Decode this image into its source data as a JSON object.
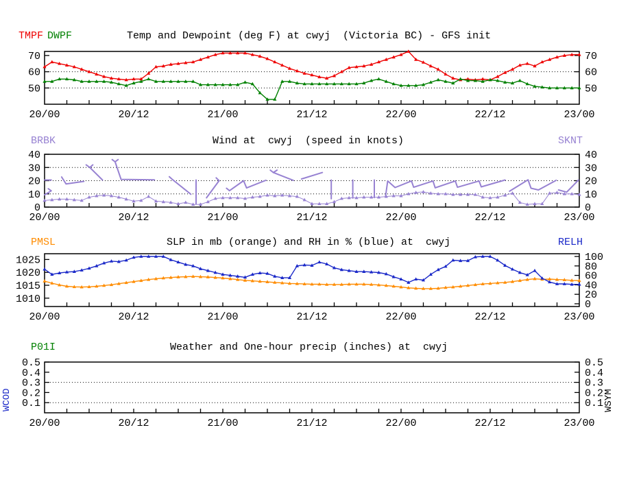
{
  "colors": {
    "temp": "#ee0000",
    "dewpoint": "#008000",
    "wind": "#9782d2",
    "pressure": "#ff8c00",
    "humidity": "#1a28c8",
    "axis": "#000000",
    "background": "#ffffff"
  },
  "x_axis": {
    "major_tick_labels": [
      "20/00",
      "20/12",
      "21/00",
      "21/12",
      "22/00",
      "22/12",
      "23/00"
    ],
    "label_interval_hours": 12,
    "minor_tick_hours": 3,
    "total_hours": 72,
    "data_interval_hours": 1
  },
  "chart_data": [
    {
      "type": "line",
      "title": "Temp and Dewpoint (deg F) at cwyj  (Victoria BC) - GFS init",
      "y_ticks": [
        70,
        60,
        50
      ],
      "dotted_gridlines": [
        60,
        50
      ],
      "ylim": [
        40,
        72.5
      ],
      "x_hours": "hourly 0-72 from 20/00 to 23/00",
      "series": [
        {
          "name": "TMPF",
          "color_key": "temp",
          "values": [
            63,
            66,
            65,
            64,
            63,
            61.5,
            60,
            58.5,
            57,
            56,
            55.5,
            55,
            55.5,
            55.5,
            59,
            63,
            63.5,
            64.5,
            65,
            65.5,
            66,
            67.5,
            69,
            70.5,
            71.5,
            71.5,
            71.5,
            71.5,
            70.5,
            69.5,
            68,
            66,
            64,
            62,
            60.5,
            59,
            58,
            56.8,
            56,
            57.5,
            60,
            62.5,
            63,
            63.5,
            64.5,
            66,
            67.5,
            69,
            70.5,
            72.5,
            67.5,
            65.8,
            63.5,
            61.5,
            58.5,
            56,
            55,
            55.5,
            55,
            55.5,
            55,
            57,
            59.5,
            61.5,
            64,
            65,
            63.5,
            66,
            67.5,
            69,
            70,
            70.5,
            70.5
          ]
        },
        {
          "name": "DWPF",
          "color_key": "dewpoint",
          "values": [
            54,
            54,
            55.5,
            55.5,
            55,
            54,
            54,
            54,
            54,
            53.5,
            52.5,
            51.5,
            53,
            54,
            55.5,
            54,
            54,
            54,
            54,
            54,
            54,
            52,
            52,
            52,
            52,
            52,
            52,
            53.5,
            52.5,
            47,
            43,
            43,
            54,
            54,
            53,
            52.5,
            52.5,
            52.5,
            52.5,
            52.5,
            52.5,
            52.5,
            52.5,
            53,
            54.5,
            55.5,
            54,
            52.5,
            51.5,
            51.5,
            51.5,
            52,
            53.5,
            55,
            54,
            53,
            55.5,
            54.5,
            54.5,
            54,
            55,
            54.5,
            53.5,
            53,
            54.5,
            52.5,
            51,
            50.5,
            50,
            50,
            50,
            50,
            50
          ]
        }
      ]
    },
    {
      "type": "line",
      "title": "Wind at  cwyj  (speed in knots)",
      "legend_left": "BRBK",
      "legend_right": "SKNT",
      "y_ticks": [
        40,
        30,
        20,
        10,
        0
      ],
      "dotted_gridlines": [
        30,
        20,
        10
      ],
      "ylim": [
        0,
        40
      ],
      "series": [
        {
          "name": "SKNT",
          "color_key": "wind",
          "values": [
            5,
            5.5,
            6,
            6,
            5.5,
            5,
            7.5,
            8.5,
            9,
            8.5,
            7.5,
            6,
            4.5,
            5,
            8,
            4.5,
            4,
            3.5,
            2.5,
            3.5,
            2,
            2,
            4,
            6.5,
            7,
            7,
            7,
            6.5,
            7.5,
            8,
            9,
            8.5,
            9,
            8.5,
            8,
            5.5,
            2.5,
            2.5,
            2.5,
            4,
            6.5,
            7,
            7,
            7.5,
            7.5,
            7.5,
            8,
            8.5,
            8.5,
            10,
            11,
            11.5,
            10.5,
            10,
            10,
            9.5,
            9.5,
            9.5,
            9.5,
            7.5,
            7,
            7.5,
            9,
            10.5,
            3.5,
            2,
            2.5,
            2.5,
            10.5,
            11,
            10,
            10,
            9.5
          ]
        }
      ],
      "barbs_units": "polyline points [hour, knots]",
      "barbs": [
        [
          [
            0.0,
            20.5
          ],
          [
            0.9,
            20.5
          ]
        ],
        [
          [
            0.0,
            9.3
          ],
          [
            0.9,
            12.3
          ],
          [
            0.5,
            13.9
          ]
        ],
        [
          [
            2.3,
            22.8
          ],
          [
            2.9,
            17.5
          ],
          [
            5.3,
            19.5
          ]
        ],
        [
          [
            5.6,
            32
          ],
          [
            6.1,
            30
          ],
          [
            6.5,
            32
          ]
        ],
        [
          [
            6.1,
            30
          ],
          [
            7.8,
            20.5
          ]
        ],
        [
          [
            9.1,
            36
          ],
          [
            9.5,
            34.3
          ],
          [
            9.9,
            36
          ]
        ],
        [
          [
            9.5,
            34.3
          ],
          [
            10.3,
            21
          ],
          [
            14.8,
            20.7
          ]
        ],
        [
          [
            16.8,
            23
          ],
          [
            17.2,
            21
          ],
          [
            19.7,
            9.7
          ]
        ],
        [
          [
            20.4,
            20.5
          ],
          [
            20.4,
            2.5
          ]
        ],
        [
          [
            21.8,
            7
          ],
          [
            23.5,
            20
          ],
          [
            23.1,
            22.2
          ]
        ],
        [
          [
            24.5,
            14.3
          ],
          [
            24.9,
            12.4
          ],
          [
            26.8,
            20
          ],
          [
            27.2,
            14.5
          ],
          [
            29.8,
            20.3
          ]
        ],
        [
          [
            30.4,
            28
          ],
          [
            30.8,
            26.2
          ],
          [
            31.3,
            28
          ]
        ],
        [
          [
            30.8,
            26.2
          ],
          [
            33.5,
            20.2
          ]
        ],
        [
          [
            34.6,
            21.3
          ],
          [
            37.4,
            26.2
          ]
        ],
        [
          [
            38.6,
            20.5
          ],
          [
            38.6,
            6.3
          ]
        ],
        [
          [
            41.5,
            20.5
          ],
          [
            41.5,
            6.8
          ]
        ],
        [
          [
            44.4,
            20.5
          ],
          [
            44.4,
            7.2
          ]
        ],
        [
          [
            45.9,
            7.8
          ],
          [
            46.2,
            19.8
          ],
          [
            47.2,
            14.8
          ],
          [
            49.4,
            19.8
          ],
          [
            49.7,
            15
          ],
          [
            52.3,
            19.8
          ],
          [
            52.6,
            14.6
          ],
          [
            55.3,
            19.8
          ],
          [
            55.6,
            15
          ],
          [
            58.5,
            19.8
          ],
          [
            58.8,
            15.3
          ],
          [
            62.0,
            20.5
          ]
        ],
        [
          [
            62.6,
            12
          ],
          [
            65.1,
            20.7
          ],
          [
            65.5,
            14.3
          ],
          [
            66.5,
            13
          ],
          [
            68.9,
            20.3
          ]
        ],
        [
          [
            69.2,
            13
          ],
          [
            70.3,
            11.3
          ],
          [
            71.9,
            20.5
          ]
        ]
      ]
    },
    {
      "type": "line",
      "title": "SLP in mb (orange) and RH in % (blue) at  cwyj",
      "legend_left": "PMSL",
      "legend_right": "RELH",
      "left_axis": {
        "ticks": [
          1025,
          1020,
          1015,
          1010
        ],
        "units": "mb"
      },
      "right_axis": {
        "ticks": [
          100,
          80,
          60,
          40,
          20,
          0
        ],
        "units": "%"
      },
      "series": [
        {
          "name": "PMSL",
          "axis": "left",
          "color_key": "pressure",
          "values": [
            1016.6,
            1015.8,
            1015.1,
            1014.6,
            1014.4,
            1014.3,
            1014.4,
            1014.6,
            1014.9,
            1015.2,
            1015.6,
            1016.0,
            1016.4,
            1016.8,
            1017.2,
            1017.5,
            1017.8,
            1018.0,
            1018.2,
            1018.3,
            1018.4,
            1018.3,
            1018.2,
            1018.0,
            1017.8,
            1017.5,
            1017.2,
            1016.9,
            1016.7,
            1016.5,
            1016.3,
            1016.1,
            1015.9,
            1015.7,
            1015.6,
            1015.5,
            1015.4,
            1015.4,
            1015.3,
            1015.3,
            1015.3,
            1015.4,
            1015.4,
            1015.4,
            1015.3,
            1015.1,
            1014.9,
            1014.6,
            1014.3,
            1014.0,
            1013.8,
            1013.7,
            1013.7,
            1013.8,
            1014.1,
            1014.3,
            1014.6,
            1014.9,
            1015.2,
            1015.5,
            1015.7,
            1015.9,
            1016.1,
            1016.4,
            1016.8,
            1017.2,
            1017.5,
            1017.3,
            1017.4,
            1017.2,
            1017.1,
            1016.9,
            1016.8
          ]
        },
        {
          "name": "RELH",
          "axis": "right",
          "color_key": "humidity",
          "values": [
            73,
            62,
            65,
            67,
            68,
            71,
            75,
            80,
            86,
            90,
            89,
            92,
            98,
            100,
            100,
            100,
            100,
            93,
            88,
            83,
            80,
            74,
            70,
            66,
            62,
            60,
            58,
            56,
            62,
            65,
            64,
            58,
            55,
            55,
            80,
            82,
            81,
            88,
            84,
            76,
            72,
            70,
            68,
            68,
            67,
            66,
            63,
            57,
            52,
            45,
            52,
            50,
            62,
            72,
            79,
            92,
            91,
            91,
            99,
            100,
            100,
            92,
            81,
            73,
            66,
            61,
            70,
            54,
            46,
            42,
            42,
            41,
            41
          ]
        }
      ]
    },
    {
      "type": "line",
      "title": "Weather and One-hour precip (inches) at  cwyj",
      "legend_left": "P01I",
      "side_label_left": "WCOD",
      "side_label_right": "WSYM",
      "y_ticks": [
        0.5,
        0.4,
        0.3,
        0.2,
        0.1
      ],
      "dotted_gridlines": [
        0.3,
        0.1
      ],
      "ylim": [
        0,
        0.5
      ],
      "series": [
        {
          "name": "P01I",
          "color_key": "dewpoint",
          "values": []
        }
      ]
    }
  ]
}
